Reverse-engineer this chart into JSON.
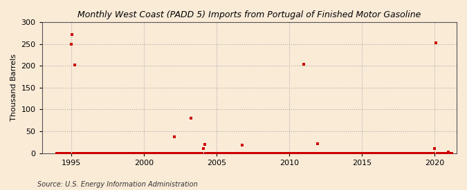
{
  "title": "Monthly West Coast (PADD 5) Imports from Portugal of Finished Motor Gasoline",
  "ylabel": "Thousand Barrels",
  "source": "Source: U.S. Energy Information Administration",
  "bg_color": "#faebd7",
  "marker_color": "#cc0000",
  "xlim": [
    1993.0,
    2021.5
  ],
  "ylim": [
    0,
    300
  ],
  "yticks": [
    0,
    50,
    100,
    150,
    200,
    250,
    300
  ],
  "xticks": [
    1995,
    2000,
    2005,
    2010,
    2015,
    2020
  ],
  "data_points": [
    [
      1994.0,
      0
    ],
    [
      1994.08,
      0
    ],
    [
      1994.17,
      0
    ],
    [
      1994.25,
      0
    ],
    [
      1994.33,
      0
    ],
    [
      1994.42,
      0
    ],
    [
      1994.5,
      0
    ],
    [
      1994.58,
      0
    ],
    [
      1994.67,
      0
    ],
    [
      1994.75,
      0
    ],
    [
      1994.83,
      0
    ],
    [
      1994.92,
      0
    ],
    [
      1995.0,
      249
    ],
    [
      1995.08,
      272
    ],
    [
      1995.17,
      0
    ],
    [
      1995.25,
      202
    ],
    [
      1995.33,
      0
    ],
    [
      1995.42,
      0
    ],
    [
      1995.5,
      0
    ],
    [
      1995.58,
      0
    ],
    [
      1995.67,
      0
    ],
    [
      1995.75,
      0
    ],
    [
      1995.83,
      0
    ],
    [
      1995.92,
      0
    ],
    [
      1996.0,
      0
    ],
    [
      1996.08,
      0
    ],
    [
      1996.17,
      0
    ],
    [
      1996.25,
      0
    ],
    [
      1996.33,
      0
    ],
    [
      1996.42,
      0
    ],
    [
      1996.5,
      0
    ],
    [
      1996.58,
      0
    ],
    [
      1996.67,
      0
    ],
    [
      1996.75,
      0
    ],
    [
      1996.83,
      0
    ],
    [
      1996.92,
      0
    ],
    [
      1997.0,
      0
    ],
    [
      1997.08,
      0
    ],
    [
      1997.17,
      0
    ],
    [
      1997.25,
      0
    ],
    [
      1997.33,
      0
    ],
    [
      1997.42,
      0
    ],
    [
      1997.5,
      0
    ],
    [
      1997.58,
      0
    ],
    [
      1997.67,
      0
    ],
    [
      1997.75,
      0
    ],
    [
      1997.83,
      0
    ],
    [
      1997.92,
      0
    ],
    [
      1998.0,
      0
    ],
    [
      1998.08,
      0
    ],
    [
      1998.17,
      0
    ],
    [
      1998.25,
      0
    ],
    [
      1998.33,
      0
    ],
    [
      1998.42,
      0
    ],
    [
      1998.5,
      0
    ],
    [
      1998.58,
      0
    ],
    [
      1998.67,
      0
    ],
    [
      1998.75,
      0
    ],
    [
      1998.83,
      0
    ],
    [
      1998.92,
      0
    ],
    [
      1999.0,
      0
    ],
    [
      1999.08,
      0
    ],
    [
      1999.17,
      0
    ],
    [
      1999.25,
      0
    ],
    [
      1999.33,
      0
    ],
    [
      1999.42,
      0
    ],
    [
      1999.5,
      0
    ],
    [
      1999.58,
      0
    ],
    [
      1999.67,
      0
    ],
    [
      1999.75,
      0
    ],
    [
      1999.83,
      0
    ],
    [
      1999.92,
      0
    ],
    [
      2000.0,
      0
    ],
    [
      2000.08,
      0
    ],
    [
      2000.17,
      0
    ],
    [
      2000.25,
      0
    ],
    [
      2000.33,
      0
    ],
    [
      2000.42,
      0
    ],
    [
      2000.5,
      0
    ],
    [
      2000.58,
      0
    ],
    [
      2000.67,
      0
    ],
    [
      2000.75,
      0
    ],
    [
      2000.83,
      0
    ],
    [
      2000.92,
      0
    ],
    [
      2001.0,
      0
    ],
    [
      2001.08,
      0
    ],
    [
      2001.17,
      0
    ],
    [
      2001.25,
      0
    ],
    [
      2001.33,
      0
    ],
    [
      2001.42,
      0
    ],
    [
      2001.5,
      0
    ],
    [
      2001.58,
      0
    ],
    [
      2001.67,
      0
    ],
    [
      2001.75,
      0
    ],
    [
      2001.83,
      0
    ],
    [
      2001.92,
      0
    ],
    [
      2002.0,
      0
    ],
    [
      2002.08,
      38
    ],
    [
      2002.17,
      0
    ],
    [
      2002.25,
      0
    ],
    [
      2002.33,
      0
    ],
    [
      2002.42,
      0
    ],
    [
      2002.5,
      0
    ],
    [
      2002.58,
      0
    ],
    [
      2002.67,
      0
    ],
    [
      2002.75,
      0
    ],
    [
      2002.83,
      0
    ],
    [
      2002.92,
      0
    ],
    [
      2003.0,
      0
    ],
    [
      2003.08,
      0
    ],
    [
      2003.17,
      0
    ],
    [
      2003.25,
      80
    ],
    [
      2003.33,
      0
    ],
    [
      2003.42,
      0
    ],
    [
      2003.5,
      0
    ],
    [
      2003.58,
      0
    ],
    [
      2003.67,
      0
    ],
    [
      2003.75,
      0
    ],
    [
      2003.83,
      0
    ],
    [
      2003.92,
      0
    ],
    [
      2004.0,
      0
    ],
    [
      2004.08,
      11
    ],
    [
      2004.17,
      20
    ],
    [
      2004.25,
      0
    ],
    [
      2004.33,
      0
    ],
    [
      2004.42,
      0
    ],
    [
      2004.5,
      0
    ],
    [
      2004.58,
      0
    ],
    [
      2004.67,
      0
    ],
    [
      2004.75,
      0
    ],
    [
      2004.83,
      0
    ],
    [
      2004.92,
      0
    ],
    [
      2005.0,
      0
    ],
    [
      2005.08,
      0
    ],
    [
      2005.17,
      0
    ],
    [
      2005.25,
      0
    ],
    [
      2005.33,
      0
    ],
    [
      2005.42,
      0
    ],
    [
      2005.5,
      0
    ],
    [
      2005.58,
      0
    ],
    [
      2005.67,
      0
    ],
    [
      2005.75,
      0
    ],
    [
      2005.83,
      0
    ],
    [
      2005.92,
      0
    ],
    [
      2006.0,
      0
    ],
    [
      2006.08,
      0
    ],
    [
      2006.17,
      0
    ],
    [
      2006.25,
      0
    ],
    [
      2006.33,
      0
    ],
    [
      2006.42,
      0
    ],
    [
      2006.5,
      0
    ],
    [
      2006.58,
      0
    ],
    [
      2006.67,
      0
    ],
    [
      2006.75,
      19
    ],
    [
      2006.83,
      0
    ],
    [
      2006.92,
      0
    ],
    [
      2007.0,
      0
    ],
    [
      2007.08,
      0
    ],
    [
      2007.17,
      0
    ],
    [
      2007.25,
      0
    ],
    [
      2007.33,
      0
    ],
    [
      2007.42,
      0
    ],
    [
      2007.5,
      0
    ],
    [
      2007.58,
      0
    ],
    [
      2007.67,
      0
    ],
    [
      2007.75,
      0
    ],
    [
      2007.83,
      0
    ],
    [
      2007.92,
      0
    ],
    [
      2008.0,
      0
    ],
    [
      2008.08,
      0
    ],
    [
      2008.17,
      0
    ],
    [
      2008.25,
      0
    ],
    [
      2008.33,
      0
    ],
    [
      2008.42,
      0
    ],
    [
      2008.5,
      0
    ],
    [
      2008.58,
      0
    ],
    [
      2008.67,
      0
    ],
    [
      2008.75,
      0
    ],
    [
      2008.83,
      0
    ],
    [
      2008.92,
      0
    ],
    [
      2009.0,
      0
    ],
    [
      2009.08,
      0
    ],
    [
      2009.17,
      0
    ],
    [
      2009.25,
      0
    ],
    [
      2009.33,
      0
    ],
    [
      2009.42,
      0
    ],
    [
      2009.5,
      0
    ],
    [
      2009.58,
      0
    ],
    [
      2009.67,
      0
    ],
    [
      2009.75,
      0
    ],
    [
      2009.83,
      0
    ],
    [
      2009.92,
      0
    ],
    [
      2010.0,
      0
    ],
    [
      2010.08,
      0
    ],
    [
      2010.17,
      0
    ],
    [
      2010.25,
      0
    ],
    [
      2010.33,
      0
    ],
    [
      2010.42,
      0
    ],
    [
      2010.5,
      0
    ],
    [
      2010.58,
      0
    ],
    [
      2010.67,
      0
    ],
    [
      2010.75,
      0
    ],
    [
      2010.83,
      0
    ],
    [
      2010.92,
      0
    ],
    [
      2011.0,
      204
    ],
    [
      2011.08,
      0
    ],
    [
      2011.17,
      0
    ],
    [
      2011.25,
      0
    ],
    [
      2011.33,
      0
    ],
    [
      2011.42,
      0
    ],
    [
      2011.5,
      0
    ],
    [
      2011.58,
      0
    ],
    [
      2011.67,
      0
    ],
    [
      2011.75,
      0
    ],
    [
      2011.83,
      0
    ],
    [
      2011.92,
      22
    ],
    [
      2012.0,
      0
    ],
    [
      2012.08,
      0
    ],
    [
      2012.17,
      0
    ],
    [
      2012.25,
      0
    ],
    [
      2012.33,
      0
    ],
    [
      2012.42,
      0
    ],
    [
      2012.5,
      0
    ],
    [
      2012.58,
      0
    ],
    [
      2012.67,
      0
    ],
    [
      2012.75,
      0
    ],
    [
      2012.83,
      0
    ],
    [
      2012.92,
      0
    ],
    [
      2013.0,
      0
    ],
    [
      2013.08,
      0
    ],
    [
      2013.17,
      0
    ],
    [
      2013.25,
      0
    ],
    [
      2013.33,
      0
    ],
    [
      2013.42,
      0
    ],
    [
      2013.5,
      0
    ],
    [
      2013.58,
      0
    ],
    [
      2013.67,
      0
    ],
    [
      2013.75,
      0
    ],
    [
      2013.83,
      0
    ],
    [
      2013.92,
      0
    ],
    [
      2014.0,
      0
    ],
    [
      2014.08,
      0
    ],
    [
      2014.17,
      0
    ],
    [
      2014.25,
      0
    ],
    [
      2014.33,
      0
    ],
    [
      2014.42,
      0
    ],
    [
      2014.5,
      0
    ],
    [
      2014.58,
      0
    ],
    [
      2014.67,
      0
    ],
    [
      2014.75,
      0
    ],
    [
      2014.83,
      0
    ],
    [
      2014.92,
      0
    ],
    [
      2015.0,
      0
    ],
    [
      2015.08,
      0
    ],
    [
      2015.17,
      0
    ],
    [
      2015.25,
      0
    ],
    [
      2015.33,
      0
    ],
    [
      2015.42,
      0
    ],
    [
      2015.5,
      0
    ],
    [
      2015.58,
      0
    ],
    [
      2015.67,
      0
    ],
    [
      2015.75,
      0
    ],
    [
      2015.83,
      0
    ],
    [
      2015.92,
      0
    ],
    [
      2016.0,
      0
    ],
    [
      2016.08,
      0
    ],
    [
      2016.17,
      0
    ],
    [
      2016.25,
      0
    ],
    [
      2016.33,
      0
    ],
    [
      2016.42,
      0
    ],
    [
      2016.5,
      0
    ],
    [
      2016.58,
      0
    ],
    [
      2016.67,
      0
    ],
    [
      2016.75,
      0
    ],
    [
      2016.83,
      0
    ],
    [
      2016.92,
      0
    ],
    [
      2017.0,
      0
    ],
    [
      2017.08,
      0
    ],
    [
      2017.17,
      0
    ],
    [
      2017.25,
      0
    ],
    [
      2017.33,
      0
    ],
    [
      2017.42,
      0
    ],
    [
      2017.5,
      0
    ],
    [
      2017.58,
      0
    ],
    [
      2017.67,
      0
    ],
    [
      2017.75,
      0
    ],
    [
      2017.83,
      0
    ],
    [
      2017.92,
      0
    ],
    [
      2018.0,
      0
    ],
    [
      2018.08,
      0
    ],
    [
      2018.17,
      0
    ],
    [
      2018.25,
      0
    ],
    [
      2018.33,
      0
    ],
    [
      2018.42,
      0
    ],
    [
      2018.5,
      0
    ],
    [
      2018.58,
      0
    ],
    [
      2018.67,
      0
    ],
    [
      2018.75,
      0
    ],
    [
      2018.83,
      0
    ],
    [
      2018.92,
      0
    ],
    [
      2019.0,
      0
    ],
    [
      2019.08,
      0
    ],
    [
      2019.17,
      0
    ],
    [
      2019.25,
      0
    ],
    [
      2019.33,
      0
    ],
    [
      2019.42,
      0
    ],
    [
      2019.5,
      0
    ],
    [
      2019.58,
      0
    ],
    [
      2019.67,
      0
    ],
    [
      2019.75,
      0
    ],
    [
      2019.83,
      0
    ],
    [
      2019.92,
      0
    ],
    [
      2020.0,
      11
    ],
    [
      2020.08,
      252
    ],
    [
      2020.17,
      0
    ],
    [
      2020.25,
      0
    ],
    [
      2020.33,
      0
    ],
    [
      2020.42,
      0
    ],
    [
      2020.5,
      0
    ],
    [
      2020.58,
      0
    ],
    [
      2020.67,
      0
    ],
    [
      2020.75,
      0
    ],
    [
      2020.83,
      0
    ],
    [
      2020.92,
      3
    ],
    [
      2021.0,
      0
    ],
    [
      2021.08,
      0
    ],
    [
      2021.17,
      0
    ]
  ]
}
